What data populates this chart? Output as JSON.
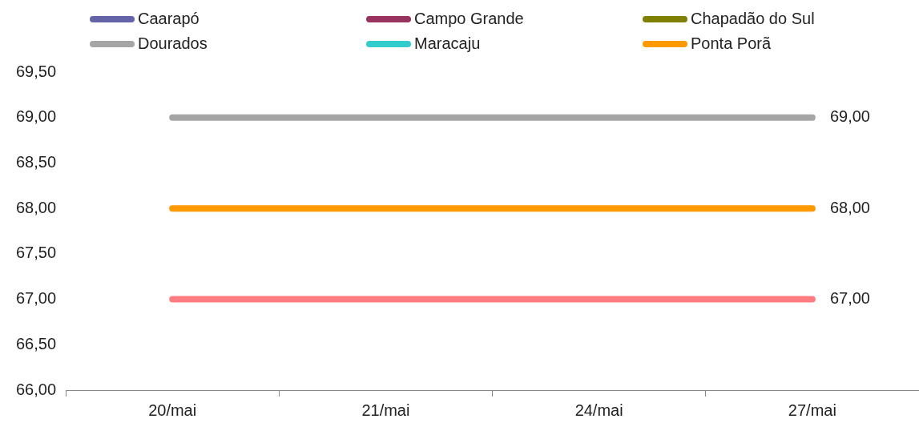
{
  "chart_data": {
    "type": "line",
    "categories": [
      "20/mai",
      "21/mai",
      "24/mai",
      "27/mai"
    ],
    "series": [
      {
        "name": "Caarapó",
        "color": "#6264a7",
        "values": [
          null,
          null,
          null,
          null
        ]
      },
      {
        "name": "Campo Grande",
        "color": "#98325f",
        "values": [
          null,
          null,
          null,
          null
        ]
      },
      {
        "name": "Chapadão do Sul",
        "color": "#808000",
        "values": [
          null,
          null,
          null,
          null
        ]
      },
      {
        "name": "Dourados",
        "color": "#a5a5a5",
        "values": [
          69,
          69,
          69,
          69
        ],
        "value_labels": [
          null,
          null,
          null,
          "69,00"
        ]
      },
      {
        "name": "Maracaju",
        "color": "#33cccc",
        "values": [
          null,
          null,
          null,
          null
        ]
      },
      {
        "name": "Ponta Porã",
        "color": "#ff9900",
        "values": [
          68,
          68,
          68,
          68
        ],
        "value_labels": [
          null,
          null,
          null,
          "68,00"
        ]
      },
      {
        "color": "#ff7c80",
        "values": [
          67,
          67,
          67,
          67
        ],
        "value_labels": [
          null,
          null,
          null,
          "67,00"
        ]
      }
    ],
    "ylim": [
      66,
      69.5
    ],
    "yticks": [
      {
        "value": 66,
        "label": "66,00"
      },
      {
        "value": 66.5,
        "label": "66,50"
      },
      {
        "value": 67,
        "label": "67,00"
      },
      {
        "value": 67.5,
        "label": "67,50"
      },
      {
        "value": 68,
        "label": "68,00"
      },
      {
        "value": 68.5,
        "label": "68,50"
      },
      {
        "value": 69,
        "label": "69,00"
      },
      {
        "value": 69.5,
        "label": "69,50"
      }
    ],
    "legend": "top",
    "marker": "none",
    "line_style": "solid"
  }
}
